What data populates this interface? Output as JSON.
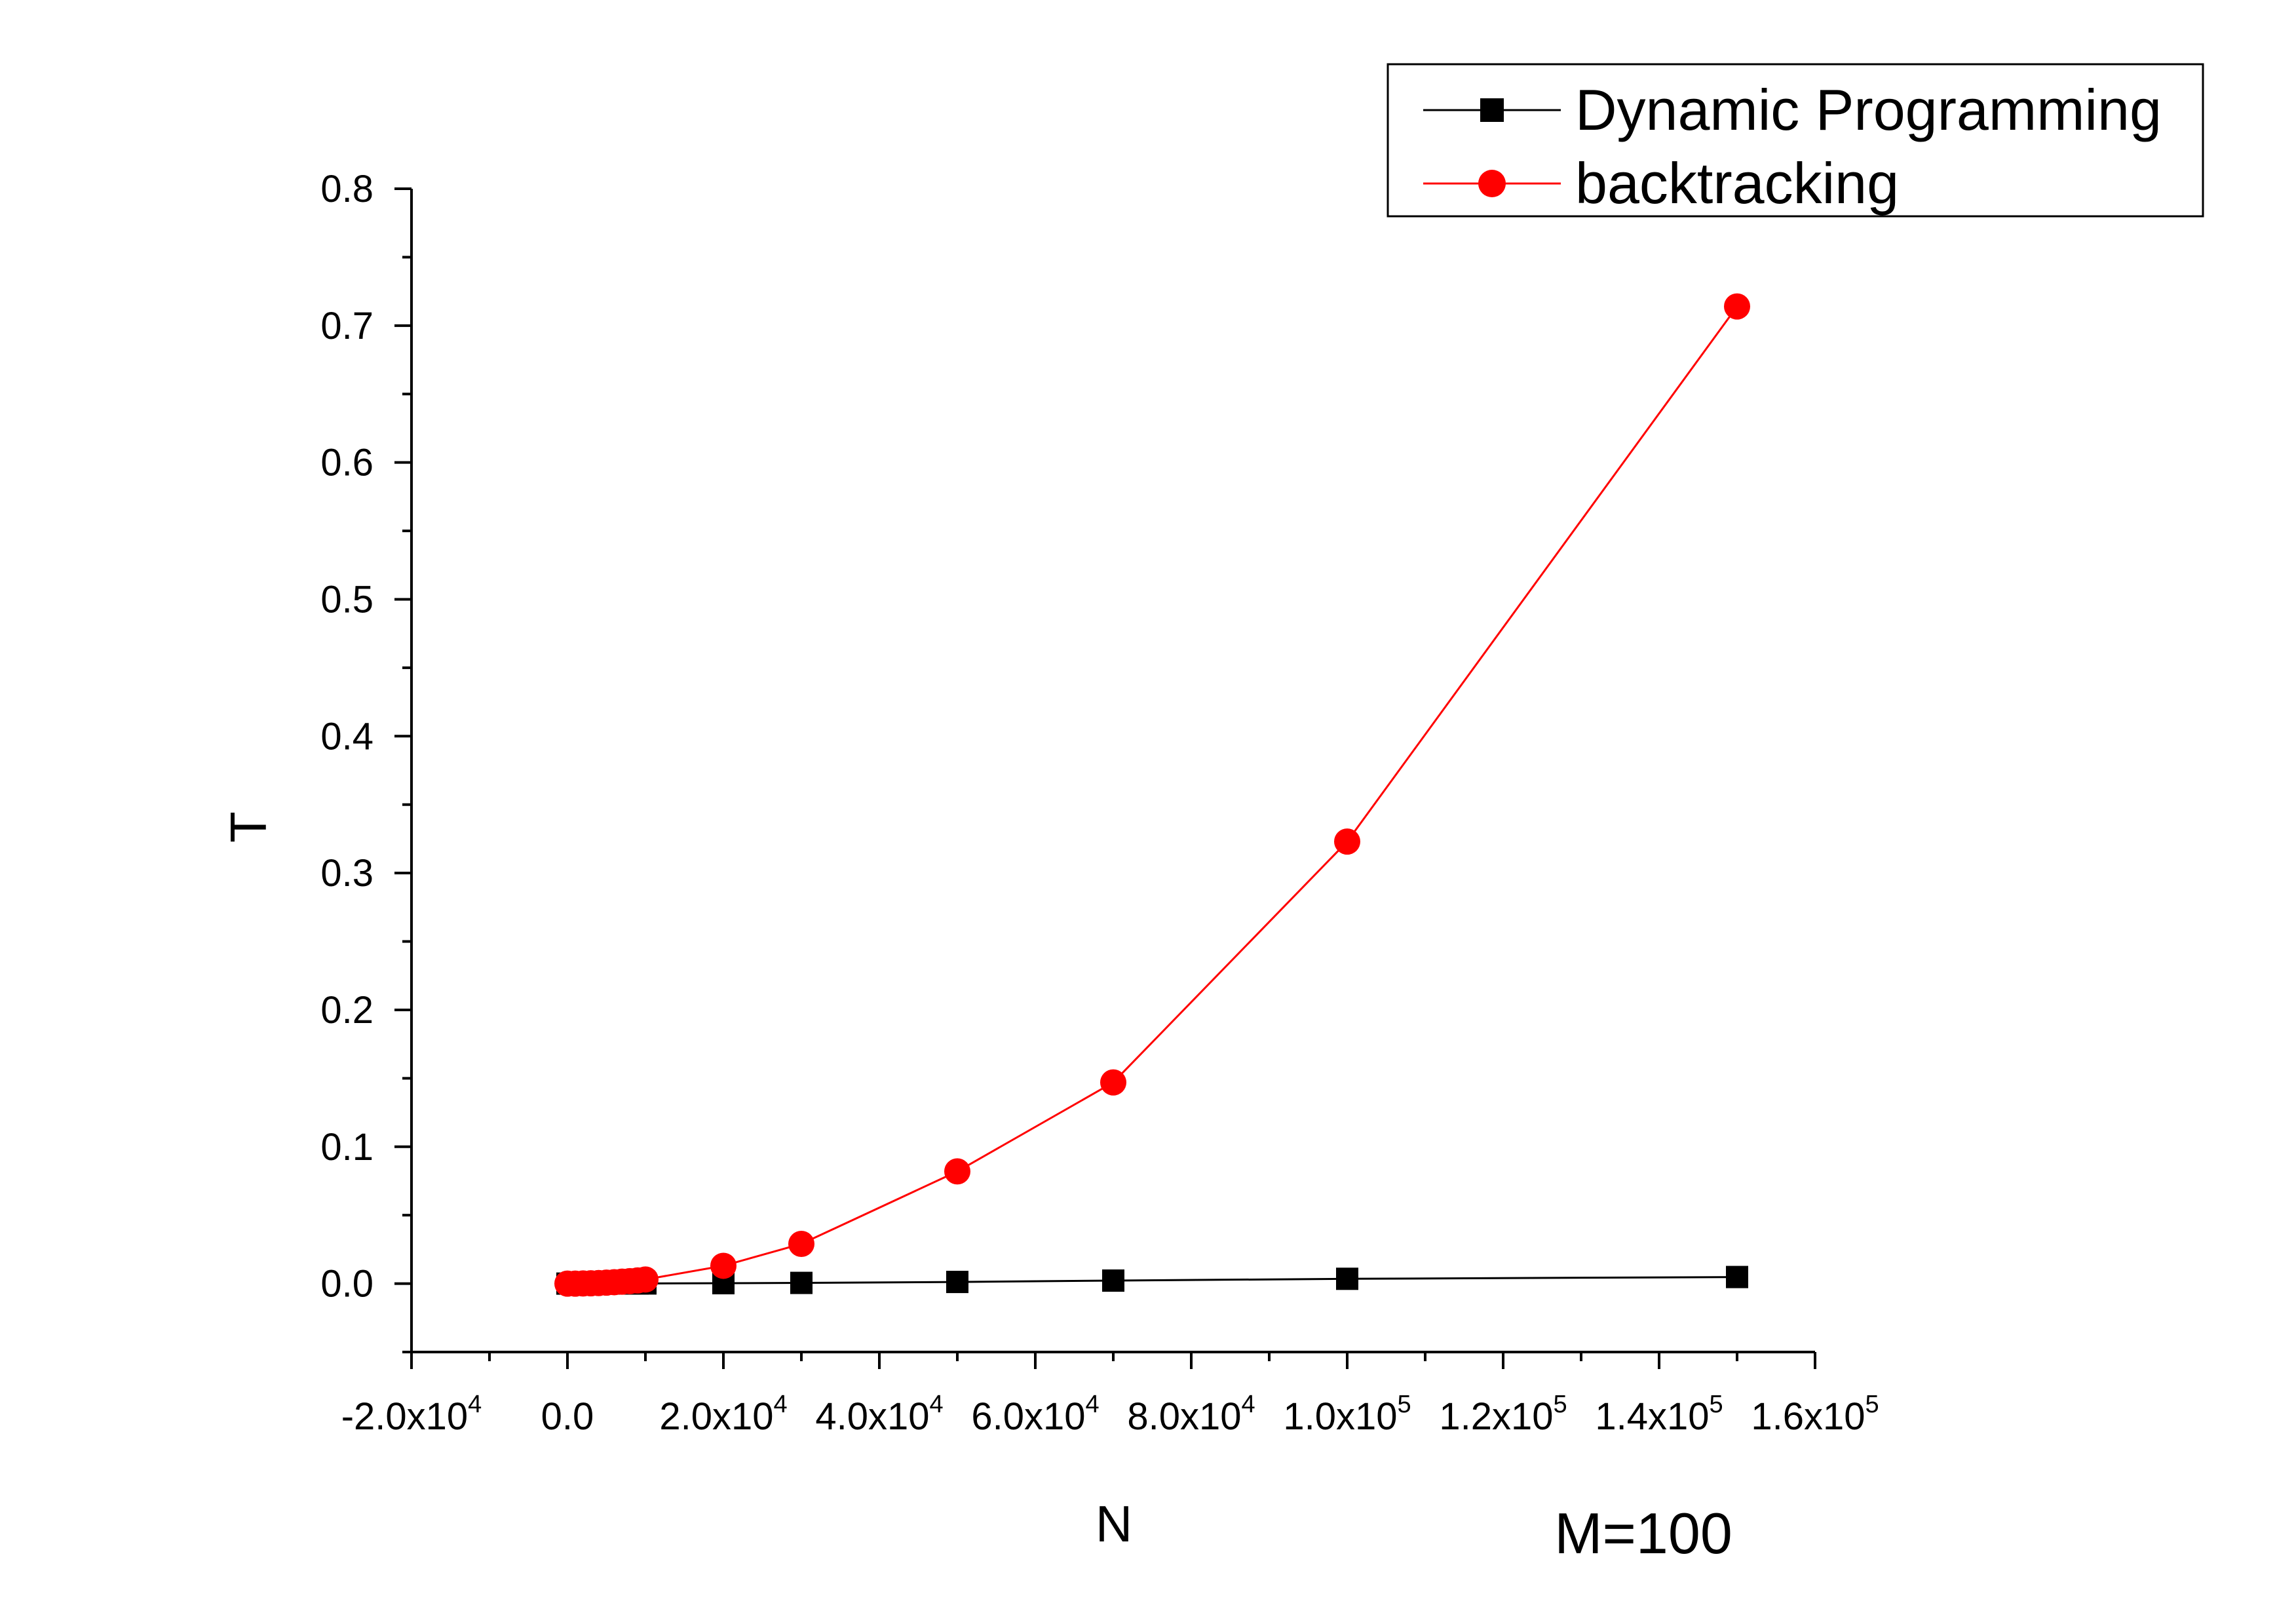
{
  "chart_data": {
    "type": "line",
    "xlabel": "N",
    "ylabel": "T",
    "annotation": "M=100",
    "xlim": [
      -20000,
      160000
    ],
    "ylim": [
      -0.05,
      0.8
    ],
    "x_ticks": [
      {
        "value": -20000,
        "label": "-2.0x10",
        "sup": "4"
      },
      {
        "value": 0,
        "label": "0.0",
        "sup": ""
      },
      {
        "value": 20000,
        "label": "2.0x10",
        "sup": "4"
      },
      {
        "value": 40000,
        "label": "4.0x10",
        "sup": "4"
      },
      {
        "value": 60000,
        "label": "6.0x10",
        "sup": "4"
      },
      {
        "value": 80000,
        "label": "8.0x10",
        "sup": "4"
      },
      {
        "value": 100000,
        "label": "1.0x10",
        "sup": "5"
      },
      {
        "value": 120000,
        "label": "1.2x10",
        "sup": "5"
      },
      {
        "value": 140000,
        "label": "1.4x10",
        "sup": "5"
      },
      {
        "value": 160000,
        "label": "1.6x10",
        "sup": "5"
      }
    ],
    "y_ticks": [
      "0.0",
      "0.1",
      "0.2",
      "0.3",
      "0.4",
      "0.5",
      "0.6",
      "0.7",
      "0.8"
    ],
    "legend_position": "top-right",
    "series": [
      {
        "name": "Dynamic Programming",
        "color": "#000000",
        "marker": "square",
        "x": [
          0,
          1000,
          2000,
          3000,
          4000,
          5000,
          6000,
          7000,
          8000,
          9000,
          10000,
          20000,
          30000,
          50000,
          70000,
          100000,
          150000
        ],
        "y": [
          0.0,
          0.0,
          0.0,
          0.0,
          0.0,
          0.0,
          0.0001,
          0.0001,
          0.0001,
          0.0001,
          0.0001,
          0.0003,
          0.0005,
          0.0012,
          0.0022,
          0.0035,
          0.0048
        ]
      },
      {
        "name": "backtracking",
        "color": "#ff0000",
        "marker": "circle",
        "x": [
          0,
          1000,
          2000,
          3000,
          4000,
          5000,
          6000,
          7000,
          8000,
          9000,
          10000,
          20000,
          30000,
          50000,
          70000,
          100000,
          150000
        ],
        "y": [
          0.0,
          0.0,
          0.0001,
          0.0002,
          0.0004,
          0.0007,
          0.001,
          0.0014,
          0.0018,
          0.0023,
          0.003,
          0.013,
          0.029,
          0.082,
          0.147,
          0.323,
          0.714
        ]
      }
    ]
  }
}
